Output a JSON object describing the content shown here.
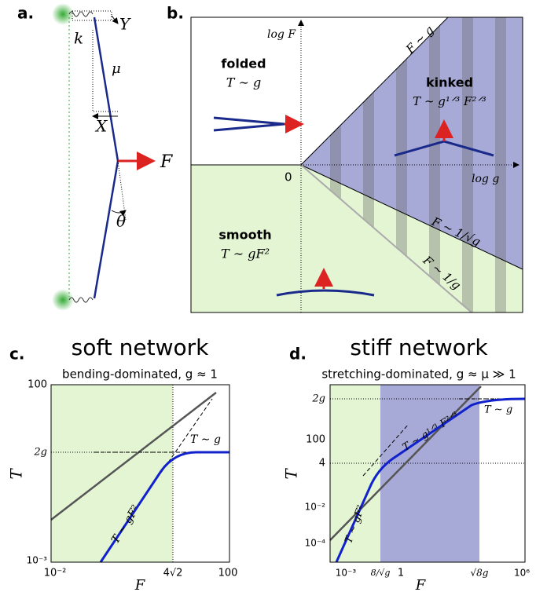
{
  "panels": {
    "a": {
      "label": "a.",
      "Y": "Y",
      "k": "k",
      "mu": "μ",
      "X": "X",
      "F": "F",
      "theta": "θ"
    },
    "b": {
      "label": "b.",
      "y_axis": "log F",
      "x_axis": "log g",
      "origin": "0",
      "regions": [
        {
          "name": "folded",
          "law": "T ∼ g"
        },
        {
          "name": "kinked",
          "law": "T ∼ g¹ᐟ³ F²ᐟ³"
        },
        {
          "name": "smooth",
          "law": "T ∼ gF²"
        }
      ],
      "lines": [
        "F ∼ g",
        "F ∼ 1/√g",
        "F ∼ 1/g"
      ]
    },
    "c": {
      "label": "c.",
      "title": "soft network",
      "subtitle": "bending-dominated, g ≈ 1",
      "ylabel": "T",
      "xlabel": "F",
      "yticks": [
        "100",
        "2g",
        "10⁻³"
      ],
      "xticks": [
        "10⁻²",
        "4√2",
        "100"
      ],
      "annotations": [
        "T ∼ g",
        "T ∼ gF²"
      ]
    },
    "d": {
      "label": "d.",
      "title": "stiff network",
      "subtitle": "stretching-dominated, g ≈ μ ≫ 1",
      "ylabel": "T",
      "xlabel": "F",
      "yticks": [
        "2g",
        "100",
        "4",
        "10⁻²",
        "10⁻⁴"
      ],
      "xticks": [
        "10⁻³",
        "8/√g",
        "1",
        "√8g",
        "10⁶"
      ],
      "annotations": [
        "T ∼ g¹ᐟ³ F²ᐟ³",
        "T ∼ g",
        "T ∼ gF²"
      ]
    }
  }
}
